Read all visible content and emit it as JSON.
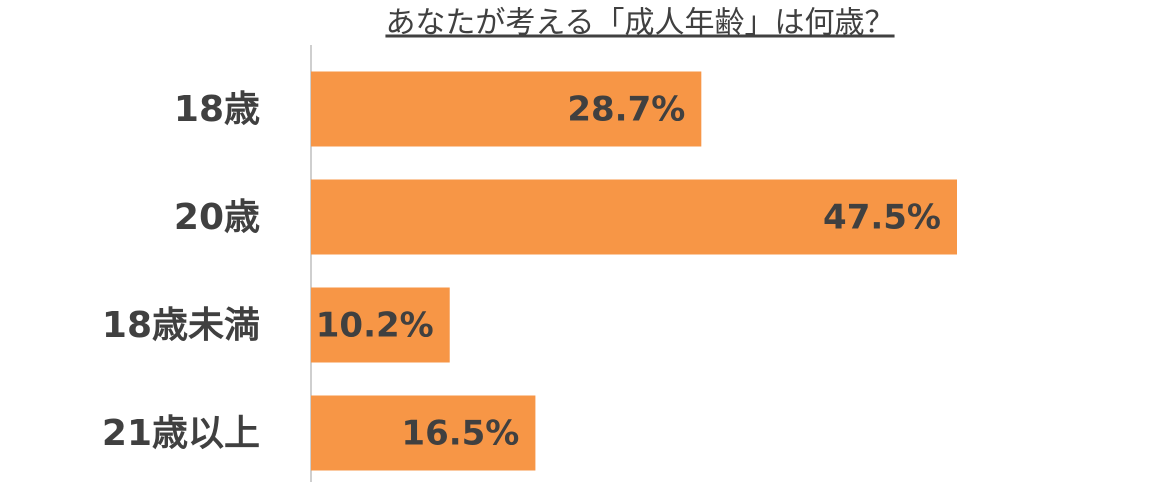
{
  "chart_data": {
    "type": "bar",
    "orientation": "horizontal",
    "title": "あなたが考える「成人年齢」は何歳？",
    "categories": [
      "18歳",
      "20歳",
      "18歳未満",
      "21歳以上"
    ],
    "values": [
      28.7,
      47.5,
      10.2,
      16.5
    ],
    "value_labels": [
      "28.7%",
      "47.5%",
      "10.2%",
      "16.5%"
    ],
    "color": "#f79646"
  }
}
